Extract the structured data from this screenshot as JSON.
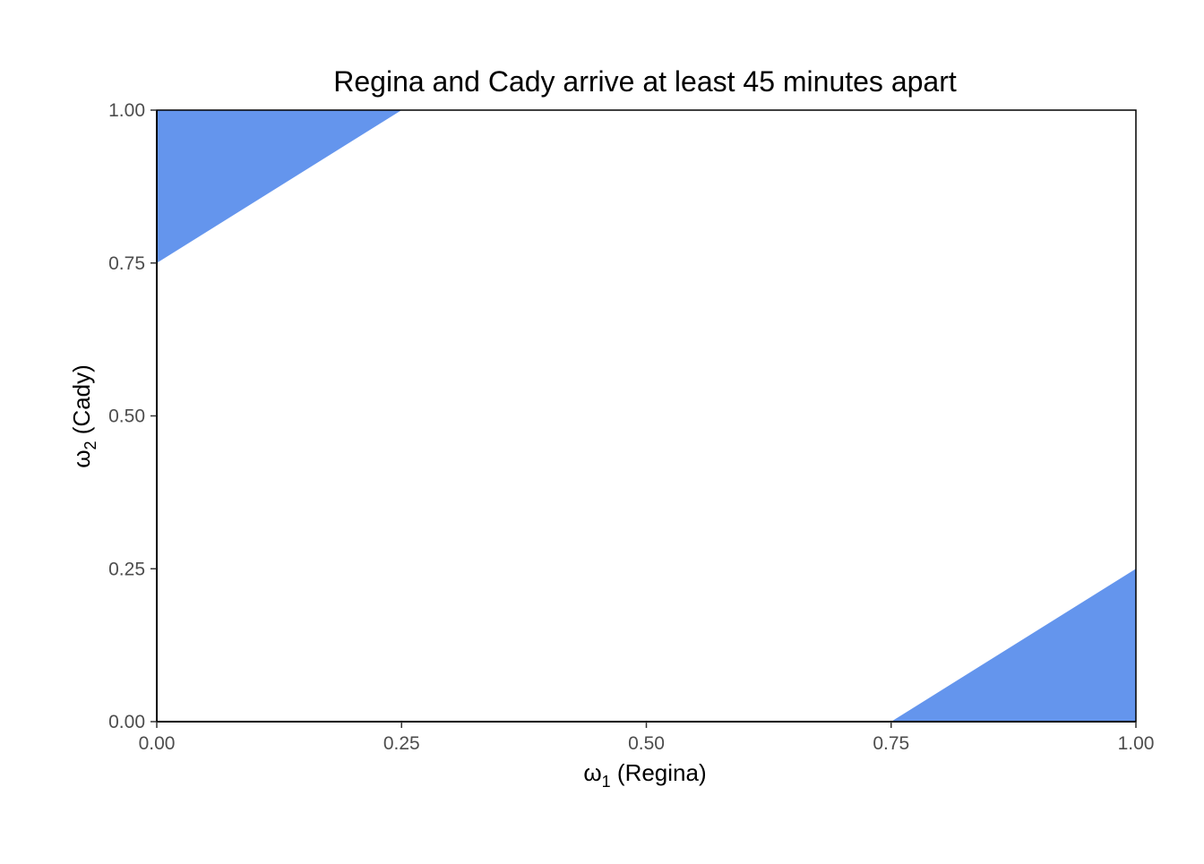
{
  "chart_data": {
    "type": "area",
    "title": "Regina and Cady arrive at least 45 minutes apart",
    "xlabel": {
      "symbol": "ω",
      "subscript": "1",
      "text": " (Regina)"
    },
    "ylabel": {
      "symbol": "ω",
      "subscript": "2",
      "text": " (Cady)"
    },
    "xlim": [
      0,
      1
    ],
    "ylim": [
      0,
      1
    ],
    "x_ticks": [
      0,
      0.25,
      0.5,
      0.75,
      1
    ],
    "y_ticks": [
      0,
      0.25,
      0.5,
      0.75,
      1
    ],
    "x_tick_labels": [
      "0.00",
      "0.25",
      "0.50",
      "0.75",
      "1.00"
    ],
    "y_tick_labels": [
      "0.00",
      "0.25",
      "0.50",
      "0.75",
      "1.00"
    ],
    "grid": false,
    "fill_color": "#6495ED",
    "regions": [
      {
        "points": [
          [
            0,
            0.75
          ],
          [
            0,
            1
          ],
          [
            0.25,
            1
          ]
        ]
      },
      {
        "points": [
          [
            0.75,
            0
          ],
          [
            1,
            0
          ],
          [
            1,
            0.25
          ]
        ]
      }
    ]
  }
}
